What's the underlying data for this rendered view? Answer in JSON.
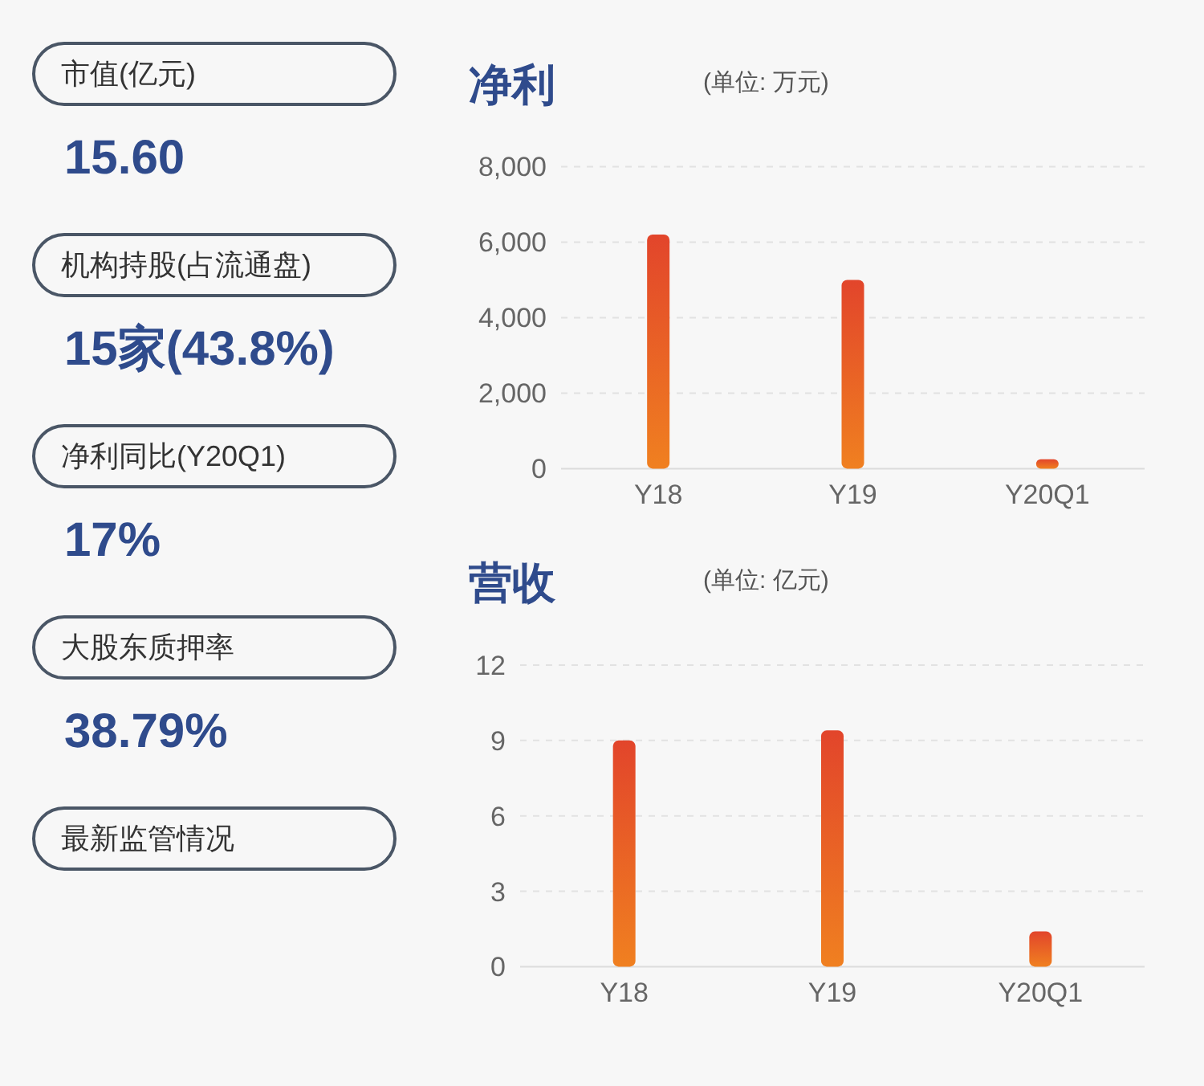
{
  "chart_data": [
    {
      "type": "other",
      "annotations": [
        "市值(亿元)",
        "15.60",
        "机构持股(占流通盘)",
        "15家(43.8%)",
        "净利同比(Y20Q1)",
        "17%",
        "大股东质押率",
        "38.79%",
        "最新监管情况"
      ]
    },
    {
      "type": "bar",
      "title": "净利",
      "subtitle": "(单位: 万元)",
      "categories": [
        "Y18",
        "Y19",
        "Y20Q1"
      ],
      "series": [
        {
          "color": "#e2452b",
          "values": [
            6200,
            5000,
            250
          ]
        }
      ],
      "ylim": [
        0,
        8000
      ],
      "yticks": [
        0,
        {
          "value": 2000,
          "label": "2,000"
        },
        {
          "value": 4000,
          "label": "4,000"
        },
        {
          "value": 6000,
          "label": "6,000"
        },
        {
          "value": 8000,
          "label": "8,000"
        }
      ],
      "grid": "y"
    },
    {
      "type": "bar",
      "title": "营收",
      "subtitle": "(单位: 亿元)",
      "categories": [
        "Y18",
        "Y19",
        "Y20Q1"
      ],
      "series": [
        {
          "color": "#e2452b",
          "values": [
            9.0,
            9.4,
            1.4
          ]
        }
      ],
      "ylim": [
        0,
        12
      ],
      "yticks": [
        0,
        3,
        6,
        9,
        12
      ],
      "grid": "y"
    }
  ]
}
